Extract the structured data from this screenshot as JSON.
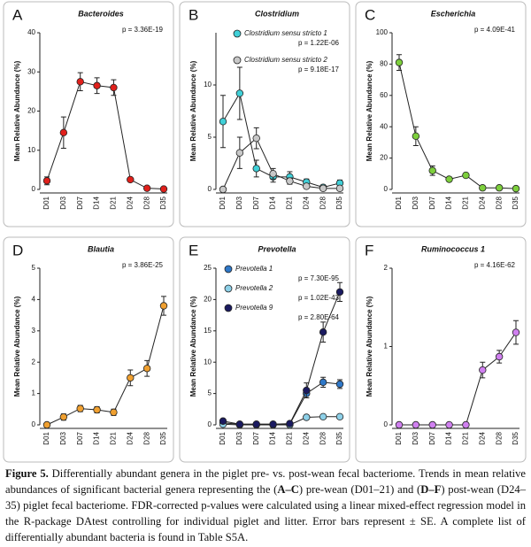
{
  "chart_data": [
    {
      "type": "line",
      "panel": "A",
      "title": "Bacteroides",
      "y_label": "Mean Relative Abundance (%)",
      "categories": [
        "D01",
        "D03",
        "D07",
        "D14",
        "D21",
        "D24",
        "D28",
        "D35"
      ],
      "ylim": [
        0,
        40
      ],
      "yticks": [
        0,
        10,
        20,
        30,
        40
      ],
      "series": [
        {
          "name": null,
          "p_label": "p = 3.36E-19",
          "color": "#e0201b",
          "values": [
            2.2,
            14.5,
            27.5,
            26.5,
            26,
            2.5,
            0.3,
            0.1
          ],
          "errors": [
            1,
            4,
            2.3,
            2,
            2,
            0.5,
            0.2,
            0.1
          ]
        }
      ]
    },
    {
      "type": "line",
      "panel": "B",
      "title": "Clostridium",
      "y_label": "Mean Relative Abundance (%)",
      "categories": [
        "D01",
        "D03",
        "D07",
        "D14",
        "D21",
        "D24",
        "D28",
        "D35"
      ],
      "ylim": [
        0,
        15
      ],
      "yticks": [
        0,
        5,
        10
      ],
      "series": [
        {
          "name": "Clostridium sensu stricto 1",
          "p_label": "p = 1.22E-06",
          "color": "#40d0d8",
          "values": [
            6.5,
            9.2,
            2,
            1.2,
            1.2,
            0.7,
            0.2,
            0.6
          ],
          "errors": [
            2.5,
            2.5,
            0.8,
            0.5,
            0.5,
            0.3,
            0.1,
            0.3
          ]
        },
        {
          "name": "Clostridium sensu stricto 2",
          "p_label": "p = 9.18E-17",
          "color": "#c8c8c8",
          "values": [
            0,
            3.5,
            4.9,
            1.5,
            0.8,
            0.3,
            0.1,
            0.1
          ],
          "errors": [
            0,
            1.5,
            1,
            0.5,
            0.3,
            0.2,
            0.05,
            0.05
          ]
        }
      ]
    },
    {
      "type": "line",
      "panel": "C",
      "title": "Escherichia",
      "y_label": "Mean Relative Abundance (%)",
      "categories": [
        "D01",
        "D03",
        "D07",
        "D14",
        "D21",
        "D24",
        "D28",
        "D35"
      ],
      "ylim": [
        0,
        100
      ],
      "yticks": [
        0,
        20,
        40,
        60,
        80,
        100
      ],
      "series": [
        {
          "name": null,
          "p_label": "p = 4.09E-41",
          "color": "#7dcf3c",
          "values": [
            81,
            34,
            12,
            6.5,
            9,
            1,
            1,
            0.5
          ],
          "errors": [
            5,
            6,
            3,
            1,
            1,
            0.5,
            0.5,
            0.3
          ]
        }
      ]
    },
    {
      "type": "line",
      "panel": "D",
      "title": "Blautia",
      "y_label": "Mean Relative Abundance (%)",
      "categories": [
        "D01",
        "D03",
        "D07",
        "D14",
        "D21",
        "D24",
        "D28",
        "D35"
      ],
      "ylim": [
        0,
        5
      ],
      "yticks": [
        0,
        1,
        2,
        3,
        4,
        5
      ],
      "series": [
        {
          "name": null,
          "p_label": "p = 3.86E-25",
          "color": "#f0a030",
          "values": [
            0,
            0.25,
            0.52,
            0.48,
            0.4,
            1.5,
            1.8,
            3.8
          ],
          "errors": [
            0,
            0.1,
            0.1,
            0.1,
            0.1,
            0.25,
            0.25,
            0.3
          ]
        }
      ]
    },
    {
      "type": "line",
      "panel": "E",
      "title": "Prevotella",
      "y_label": "Mean Relative Abundance (%)",
      "categories": [
        "D01",
        "D03",
        "D07",
        "D14",
        "D21",
        "D24",
        "D28",
        "D35"
      ],
      "ylim": [
        0,
        25
      ],
      "yticks": [
        0,
        5,
        10,
        15,
        20,
        25
      ],
      "series": [
        {
          "name": "Prevotella 1",
          "p_label": "p = 7.30E-95",
          "color": "#2f78c8",
          "values": [
            0.3,
            0.1,
            0.1,
            0.1,
            0.1,
            5,
            6.8,
            6.5
          ],
          "errors": [
            0.2,
            0,
            0,
            0,
            0,
            0.7,
            0.8,
            0.7
          ]
        },
        {
          "name": "Prevotella 2",
          "p_label": "p = 1.02E-43",
          "color": "#8dd0e8",
          "values": [
            0.1,
            0,
            0,
            0,
            0,
            1.2,
            1.3,
            1.3
          ],
          "errors": [
            0.05,
            0,
            0,
            0,
            0,
            0.2,
            0.2,
            0.2
          ]
        },
        {
          "name": "Prevotella 9",
          "p_label": "p = 2.80E-64",
          "color": "#1a1a60",
          "values": [
            0.6,
            0.1,
            0.1,
            0.1,
            0.2,
            5.5,
            14.8,
            21.2
          ],
          "errors": [
            0.3,
            0,
            0,
            0,
            0.1,
            1.2,
            1.6,
            1.5
          ]
        }
      ]
    },
    {
      "type": "line",
      "panel": "F",
      "title": "Ruminococcus 1",
      "y_label": "Mean Relative Abundance (%)",
      "categories": [
        "D01",
        "D03",
        "D07",
        "D14",
        "D21",
        "D24",
        "D28",
        "D35"
      ],
      "ylim": [
        0,
        2
      ],
      "yticks": [
        0,
        1,
        2
      ],
      "series": [
        {
          "name": null,
          "p_label": "p = 4.16E-62",
          "color": "#d080f0",
          "values": [
            0,
            0,
            0,
            0,
            0,
            0.7,
            0.87,
            1.18
          ],
          "errors": [
            0,
            0,
            0,
            0,
            0,
            0.1,
            0.08,
            0.15
          ]
        }
      ]
    }
  ],
  "caption": {
    "label": "Figure 5.",
    "parts": [
      "Differentially abundant genera in the piglet pre- vs. post-wean fecal bacteriome. Trends in mean relative abundances of significant bacterial genera representing the (",
      "A–C",
      ") pre-wean (D01–21) and (",
      "D–F",
      ") post-wean (D24–35) piglet fecal bacteriome. FDR-corrected p-values were calculated using a linear mixed-effect regression model in the R-package DAtest controlling for individual piglet and litter. Error bars represent ± SE. A complete list of differentially abundant bacteria is found in Table S5A."
    ]
  }
}
